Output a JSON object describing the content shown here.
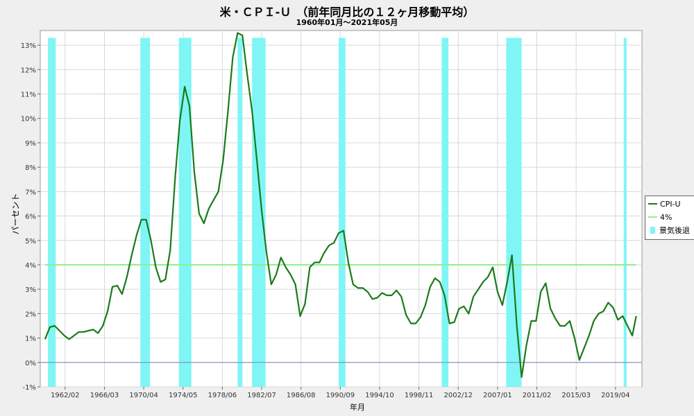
{
  "title": "米・ＣＰＩ-Ｕ　（前年同月比の１２ヶ月移動平均）",
  "subtitle": "1960年01月～2021年05月",
  "ylabel": "パーセント",
  "xlabel": "年月",
  "legend": {
    "cpi": "CPI-U",
    "ref": "4%",
    "recession": "景気後退"
  },
  "colors": {
    "cpi": "#1a7a1a",
    "ref": "#90ee90",
    "recession": "#7ff5f5",
    "zero": "#8080c0"
  },
  "chart_data": {
    "type": "line",
    "ylim": [
      -1,
      13.6
    ],
    "xlim": [
      1959.5,
      2022.0
    ],
    "yticks": [
      "-1%",
      "0%",
      "1%",
      "2%",
      "3%",
      "4%",
      "5%",
      "6%",
      "7%",
      "8%",
      "9%",
      "10%",
      "11%",
      "12%",
      "13%"
    ],
    "xticks": [
      "1962/02",
      "1966/03",
      "1970/04",
      "1974/05",
      "1978/06",
      "1982/07",
      "1986/08",
      "1990/09",
      "1994/10",
      "1998/11",
      "2002/12",
      "2007/01",
      "2011/02",
      "2015/03",
      "2019/04"
    ],
    "grid": true,
    "legend_position": "right",
    "recessions": [
      [
        1960.3,
        1961.1
      ],
      [
        1969.9,
        1970.9
      ],
      [
        1973.9,
        1975.2
      ],
      [
        1980.0,
        1980.5
      ],
      [
        1981.5,
        1982.9
      ],
      [
        1990.5,
        1991.2
      ],
      [
        2001.2,
        2001.9
      ],
      [
        2007.9,
        2009.5
      ],
      [
        2020.1,
        2020.4
      ]
    ],
    "reference_line": {
      "name": "4%",
      "value": 4
    },
    "series": [
      {
        "name": "CPI-U",
        "points": [
          [
            1960.0,
            0.95
          ],
          [
            1960.5,
            1.45
          ],
          [
            1961.0,
            1.5
          ],
          [
            1961.5,
            1.3
          ],
          [
            1962.0,
            1.1
          ],
          [
            1962.5,
            0.95
          ],
          [
            1963.0,
            1.1
          ],
          [
            1963.5,
            1.25
          ],
          [
            1964.0,
            1.25
          ],
          [
            1964.5,
            1.3
          ],
          [
            1965.0,
            1.35
          ],
          [
            1965.5,
            1.2
          ],
          [
            1966.0,
            1.5
          ],
          [
            1966.5,
            2.1
          ],
          [
            1967.0,
            3.1
          ],
          [
            1967.5,
            3.15
          ],
          [
            1968.0,
            2.8
          ],
          [
            1968.5,
            3.5
          ],
          [
            1969.0,
            4.4
          ],
          [
            1969.5,
            5.2
          ],
          [
            1970.0,
            5.85
          ],
          [
            1970.5,
            5.85
          ],
          [
            1971.0,
            5.0
          ],
          [
            1971.5,
            3.9
          ],
          [
            1972.0,
            3.3
          ],
          [
            1972.5,
            3.4
          ],
          [
            1973.0,
            4.6
          ],
          [
            1973.5,
            7.5
          ],
          [
            1974.0,
            9.9
          ],
          [
            1974.5,
            11.3
          ],
          [
            1975.0,
            10.5
          ],
          [
            1975.5,
            7.8
          ],
          [
            1976.0,
            6.1
          ],
          [
            1976.5,
            5.7
          ],
          [
            1977.0,
            6.3
          ],
          [
            1977.5,
            6.65
          ],
          [
            1978.0,
            7.0
          ],
          [
            1978.5,
            8.3
          ],
          [
            1979.0,
            10.3
          ],
          [
            1979.5,
            12.5
          ],
          [
            1980.0,
            13.5
          ],
          [
            1980.5,
            13.4
          ],
          [
            1981.0,
            11.8
          ],
          [
            1981.5,
            10.3
          ],
          [
            1982.0,
            8.3
          ],
          [
            1982.5,
            6.2
          ],
          [
            1983.0,
            4.5
          ],
          [
            1983.5,
            3.2
          ],
          [
            1984.0,
            3.6
          ],
          [
            1984.5,
            4.3
          ],
          [
            1985.0,
            3.9
          ],
          [
            1985.5,
            3.6
          ],
          [
            1986.0,
            3.2
          ],
          [
            1986.5,
            1.9
          ],
          [
            1987.0,
            2.4
          ],
          [
            1987.5,
            3.9
          ],
          [
            1988.0,
            4.1
          ],
          [
            1988.5,
            4.1
          ],
          [
            1989.0,
            4.5
          ],
          [
            1989.5,
            4.8
          ],
          [
            1990.0,
            4.9
          ],
          [
            1990.5,
            5.3
          ],
          [
            1991.0,
            5.4
          ],
          [
            1991.5,
            4.1
          ],
          [
            1992.0,
            3.2
          ],
          [
            1992.5,
            3.05
          ],
          [
            1993.0,
            3.05
          ],
          [
            1993.5,
            2.9
          ],
          [
            1994.0,
            2.6
          ],
          [
            1994.5,
            2.65
          ],
          [
            1995.0,
            2.85
          ],
          [
            1995.5,
            2.75
          ],
          [
            1996.0,
            2.75
          ],
          [
            1996.5,
            2.95
          ],
          [
            1997.0,
            2.7
          ],
          [
            1997.5,
            1.95
          ],
          [
            1998.0,
            1.6
          ],
          [
            1998.5,
            1.6
          ],
          [
            1999.0,
            1.85
          ],
          [
            1999.5,
            2.35
          ],
          [
            2000.0,
            3.1
          ],
          [
            2000.5,
            3.45
          ],
          [
            2001.0,
            3.3
          ],
          [
            2001.5,
            2.75
          ],
          [
            2002.0,
            1.6
          ],
          [
            2002.5,
            1.65
          ],
          [
            2003.0,
            2.2
          ],
          [
            2003.5,
            2.3
          ],
          [
            2004.0,
            2.0
          ],
          [
            2004.5,
            2.7
          ],
          [
            2005.0,
            3.0
          ],
          [
            2005.5,
            3.3
          ],
          [
            2006.0,
            3.5
          ],
          [
            2006.5,
            3.9
          ],
          [
            2007.0,
            2.9
          ],
          [
            2007.5,
            2.35
          ],
          [
            2008.0,
            3.3
          ],
          [
            2008.5,
            4.4
          ],
          [
            2009.0,
            1.5
          ],
          [
            2009.5,
            -0.6
          ],
          [
            2010.0,
            0.7
          ],
          [
            2010.5,
            1.7
          ],
          [
            2011.0,
            1.7
          ],
          [
            2011.5,
            2.9
          ],
          [
            2012.0,
            3.25
          ],
          [
            2012.5,
            2.2
          ],
          [
            2013.0,
            1.8
          ],
          [
            2013.5,
            1.5
          ],
          [
            2014.0,
            1.5
          ],
          [
            2014.5,
            1.7
          ],
          [
            2015.0,
            1.0
          ],
          [
            2015.5,
            0.1
          ],
          [
            2016.0,
            0.6
          ],
          [
            2016.5,
            1.1
          ],
          [
            2017.0,
            1.7
          ],
          [
            2017.5,
            2.0
          ],
          [
            2018.0,
            2.1
          ],
          [
            2018.5,
            2.45
          ],
          [
            2019.0,
            2.25
          ],
          [
            2019.5,
            1.75
          ],
          [
            2020.0,
            1.9
          ],
          [
            2020.5,
            1.5
          ],
          [
            2021.0,
            1.1
          ],
          [
            2021.4,
            1.9
          ]
        ]
      }
    ]
  }
}
